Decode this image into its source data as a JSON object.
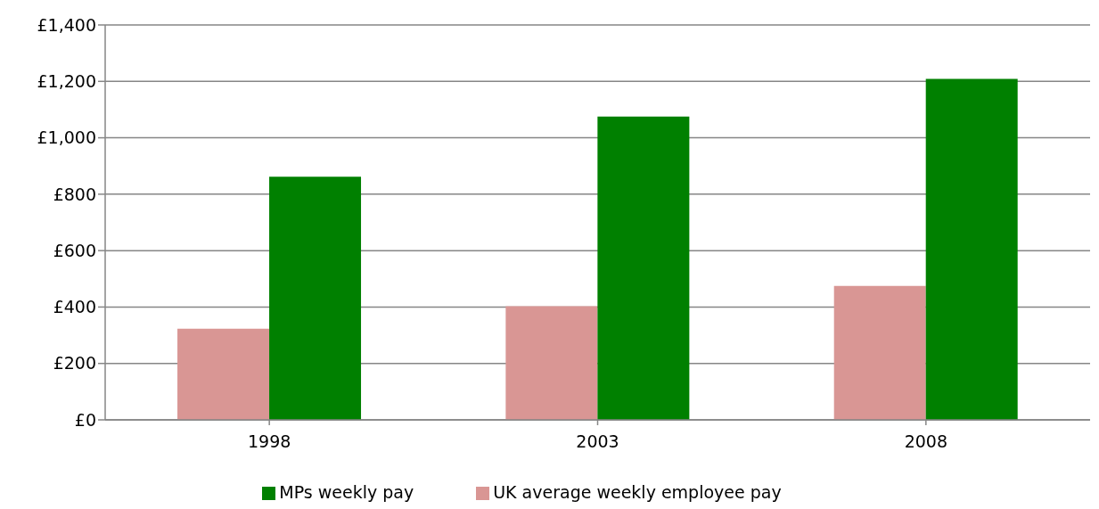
{
  "chart_data": {
    "type": "bar",
    "categories": [
      "1998",
      "2003",
      "2008"
    ],
    "series": [
      {
        "name": "UK average weekly employee pay",
        "color": "#d99694",
        "values": [
          323,
          403,
          475
        ]
      },
      {
        "name": "MPs weekly pay",
        "color": "#008000",
        "values": [
          862,
          1075,
          1209
        ]
      }
    ],
    "ylim": [
      0,
      1400
    ],
    "yticks": [
      {
        "value": 0,
        "label": "£0"
      },
      {
        "value": 200,
        "label": "£200"
      },
      {
        "value": 400,
        "label": "£400"
      },
      {
        "value": 600,
        "label": "£600"
      },
      {
        "value": 800,
        "label": "£800"
      },
      {
        "value": 1000,
        "label": "£1,000"
      },
      {
        "value": 1200,
        "label": "£1,200"
      },
      {
        "value": 1400,
        "label": "£1,400"
      }
    ],
    "grid": "y",
    "legend": "bottom"
  }
}
